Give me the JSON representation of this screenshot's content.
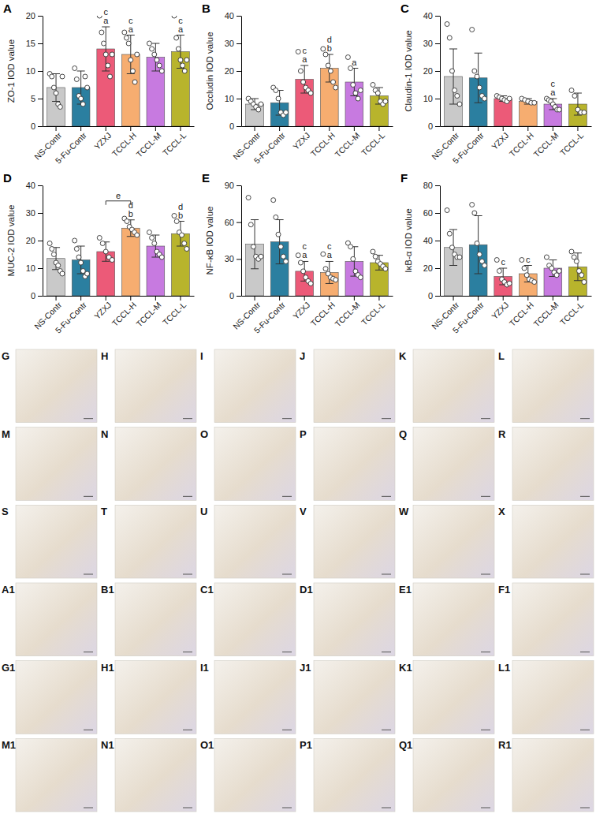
{
  "chart_data": [
    {
      "type": "bar",
      "panel": "A",
      "y_label": "ZO-1 IOD value",
      "categories": [
        "NS-Contr",
        "5-Fu-Contr",
        "YZXJ",
        "TCCL-H",
        "TCCL-M",
        "TCCL-L"
      ],
      "colors": [
        "#c9c9c9",
        "#2b7fa0",
        "#ec5a78",
        "#f6ad70",
        "#c77ae0",
        "#b8b42c"
      ],
      "values": [
        7,
        7,
        14,
        13,
        12.5,
        13.5
      ],
      "errors": [
        2.5,
        3,
        4,
        3.5,
        2.5,
        3
      ],
      "points": [
        [
          9.5,
          9,
          7,
          6,
          4,
          3.5,
          9
        ],
        [
          10.5,
          8.5,
          5.5,
          5,
          4,
          9,
          7
        ],
        [
          20,
          17,
          15,
          13,
          11,
          9,
          13
        ],
        [
          17,
          16,
          15,
          12,
          10,
          8,
          13
        ],
        [
          15,
          14,
          13,
          12,
          11,
          10
        ],
        [
          20,
          16,
          14,
          12,
          11,
          10,
          12
        ]
      ],
      "letters": [
        [],
        [],
        [
          "c",
          "a"
        ],
        [
          "c",
          "a"
        ],
        [],
        [
          "c",
          "a"
        ]
      ],
      "ylim": [
        0,
        20
      ],
      "yticks": [
        0,
        5,
        10,
        15,
        20
      ]
    },
    {
      "type": "bar",
      "panel": "B",
      "y_label": "Occludin IOD value",
      "categories": [
        "NS-Contr",
        "5-Fu-Contr",
        "YZXJ",
        "TCCL-H",
        "TCCL-M",
        "TCCL-L"
      ],
      "colors": [
        "#c9c9c9",
        "#2b7fa0",
        "#ec5a78",
        "#f6ad70",
        "#c77ae0",
        "#b8b42c"
      ],
      "values": [
        8,
        8.5,
        17,
        21,
        16,
        11
      ],
      "errors": [
        2,
        4.5,
        5,
        5,
        5,
        3
      ],
      "points": [
        [
          10,
          9,
          8,
          7,
          6,
          8
        ],
        [
          14,
          13,
          10,
          5,
          4,
          5
        ],
        [
          27,
          20,
          16,
          14,
          13,
          12
        ],
        [
          28,
          26,
          22,
          20,
          16,
          14
        ],
        [
          25,
          21,
          15,
          12,
          10,
          13
        ],
        [
          15,
          13,
          12,
          9,
          8,
          9
        ]
      ],
      "letters": [
        [],
        [],
        [
          "c",
          "a"
        ],
        [
          "d",
          "b"
        ],
        [
          "a"
        ],
        []
      ],
      "ylim": [
        0,
        40
      ],
      "yticks": [
        0,
        10,
        20,
        30,
        40
      ]
    },
    {
      "type": "bar",
      "panel": "C",
      "y_label": "Claudin-1 IOD value",
      "categories": [
        "NS-Contr",
        "5-Fu-Contr",
        "YZXJ",
        "TCCL-H",
        "TCCL-M",
        "TCCL-L"
      ],
      "colors": [
        "#c9c9c9",
        "#2b7fa0",
        "#ec5a78",
        "#f6ad70",
        "#c77ae0",
        "#b8b42c"
      ],
      "values": [
        18,
        17.5,
        10,
        9,
        8,
        8
      ],
      "errors": [
        10,
        9,
        1,
        1,
        2,
        4
      ],
      "points": [
        [
          37,
          32,
          20,
          13,
          11,
          8
        ],
        [
          35,
          20,
          18,
          14,
          11,
          10
        ],
        [
          11,
          10.5,
          10,
          9.5,
          9,
          10
        ],
        [
          10,
          9.5,
          9,
          8.5,
          8.5
        ],
        [
          10,
          9.5,
          9,
          8,
          7,
          6,
          6
        ],
        [
          13,
          11,
          6,
          5,
          5
        ]
      ],
      "letters": [
        [],
        [],
        [],
        [],
        [
          "c",
          "a"
        ],
        []
      ],
      "ylim": [
        0,
        40
      ],
      "yticks": [
        0,
        10,
        20,
        30,
        40
      ]
    },
    {
      "type": "bar",
      "panel": "D",
      "y_label": "MUC-2 IOD value",
      "categories": [
        "NS-Contr",
        "5-Fu-Contr",
        "YZXJ",
        "TCCL-H",
        "TCCL-M",
        "TCCL-L"
      ],
      "colors": [
        "#c9c9c9",
        "#2b7fa0",
        "#ec5a78",
        "#f6ad70",
        "#c77ae0",
        "#b8b42c"
      ],
      "values": [
        13.5,
        13,
        16,
        24.5,
        18,
        22.5
      ],
      "errors": [
        4,
        5,
        3.5,
        3,
        4,
        4.5
      ],
      "points": [
        [
          19,
          17,
          15,
          12,
          11,
          9,
          8
        ],
        [
          20,
          17,
          14,
          12,
          9,
          7,
          8
        ],
        [
          21,
          19,
          16,
          14,
          13
        ],
        [
          28,
          27,
          25,
          24,
          23,
          22
        ],
        [
          23,
          21,
          19,
          16,
          15,
          14
        ],
        [
          29,
          27,
          23,
          22,
          19,
          17
        ]
      ],
      "letters": [
        [],
        [],
        [],
        [
          "d",
          "b"
        ],
        [],
        [
          "d",
          "b"
        ]
      ],
      "brackets": [
        {
          "from": "YZXJ",
          "to": "TCCL-H",
          "label": "e"
        }
      ],
      "ylim": [
        0,
        40
      ],
      "yticks": [
        0,
        10,
        20,
        30,
        40
      ]
    },
    {
      "type": "bar",
      "panel": "E",
      "y_label": "NF-κB IOD value",
      "categories": [
        "NS-Contr",
        "5-Fu-Contr",
        "YZXJ",
        "TCCL-H",
        "TCCL-M",
        "TCCL-L"
      ],
      "colors": [
        "#c9c9c9",
        "#2b7fa0",
        "#ec5a78",
        "#f6ad70",
        "#c77ae0",
        "#b8b42c"
      ],
      "values": [
        42,
        44,
        20,
        19,
        28,
        27
      ],
      "errors": [
        20,
        18,
        8,
        9,
        12,
        6
      ],
      "points": [
        [
          80,
          58,
          40,
          32,
          30,
          32
        ],
        [
          78,
          64,
          50,
          40,
          32,
          28
        ],
        [
          33,
          27,
          20,
          15,
          12,
          10
        ],
        [
          34,
          22,
          18,
          15,
          14,
          13
        ],
        [
          43,
          40,
          30,
          20,
          17,
          15
        ],
        [
          36,
          32,
          28,
          26,
          24,
          22
        ]
      ],
      "letters": [
        [],
        [],
        [
          "c",
          "a"
        ],
        [
          "c",
          "a"
        ],
        [],
        []
      ],
      "ylim": [
        0,
        90
      ],
      "yticks": [
        0,
        30,
        60,
        90
      ]
    },
    {
      "type": "bar",
      "panel": "F",
      "y_label": "IκB-α IOD value",
      "categories": [
        "NS-Contr",
        "5-Fu-Contr",
        "YZXJ",
        "TCCL-H",
        "TCCL-M",
        "TCCL-L"
      ],
      "colors": [
        "#c9c9c9",
        "#2b7fa0",
        "#ec5a78",
        "#f6ad70",
        "#c77ae0",
        "#b8b42c"
      ],
      "values": [
        35,
        37,
        14,
        16,
        20,
        21
      ],
      "errors": [
        13,
        21,
        6,
        6,
        6,
        10
      ],
      "points": [
        [
          62,
          45,
          35,
          30,
          28,
          28
        ],
        [
          66,
          60,
          38,
          30,
          25,
          22
        ],
        [
          26,
          18,
          12,
          10,
          8,
          9
        ],
        [
          26,
          20,
          15,
          12,
          11,
          10
        ],
        [
          28,
          22,
          20,
          17,
          15,
          18
        ],
        [
          32,
          28,
          25,
          18,
          15,
          10
        ]
      ],
      "letters": [
        [],
        [],
        [
          "c"
        ],
        [
          "c"
        ],
        [],
        []
      ],
      "ylim": [
        0,
        80
      ],
      "yticks": [
        0,
        20,
        40,
        60,
        80
      ]
    }
  ],
  "image_panels": {
    "labels": [
      "G",
      "H",
      "I",
      "J",
      "K",
      "L",
      "M",
      "N",
      "O",
      "P",
      "Q",
      "R",
      "S",
      "T",
      "U",
      "V",
      "W",
      "X",
      "A1",
      "B1",
      "C1",
      "D1",
      "E1",
      "F1",
      "G1",
      "H1",
      "I1",
      "J1",
      "K1",
      "L1",
      "M1",
      "N1",
      "O1",
      "P1",
      "Q1",
      "R1"
    ]
  }
}
